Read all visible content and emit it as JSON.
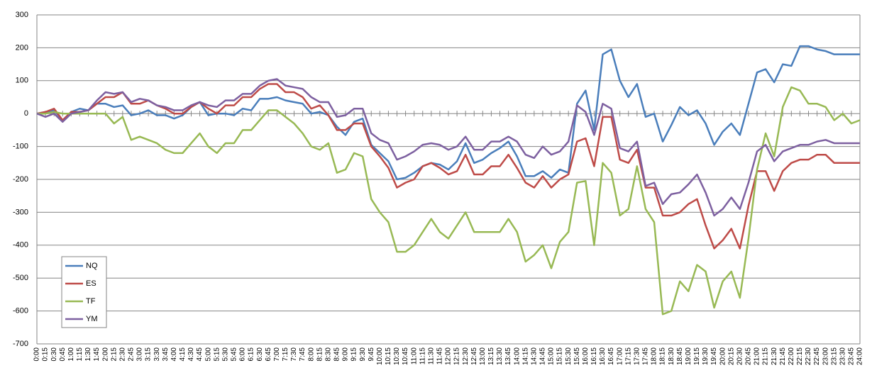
{
  "chart_data": {
    "type": "line",
    "categories": [
      "0:00",
      "0:15",
      "0:30",
      "0:45",
      "1:00",
      "1:15",
      "1:30",
      "1:45",
      "2:00",
      "2:15",
      "2:30",
      "2:45",
      "3:00",
      "3:15",
      "3:30",
      "3:45",
      "4:00",
      "4:15",
      "4:30",
      "4:45",
      "5:00",
      "5:15",
      "5:30",
      "5:45",
      "6:00",
      "6:15",
      "6:30",
      "6:45",
      "7:00",
      "7:15",
      "7:30",
      "7:45",
      "8:00",
      "8:15",
      "8:30",
      "8:45",
      "9:00",
      "9:15",
      "9:30",
      "9:45",
      "10:00",
      "10:15",
      "10:30",
      "10:45",
      "11:00",
      "11:15",
      "11:30",
      "11:45",
      "12:00",
      "12:15",
      "12:30",
      "12:45",
      "13:00",
      "13:15",
      "13:30",
      "13:45",
      "14:00",
      "14:15",
      "14:30",
      "14:45",
      "15:00",
      "15:15",
      "15:30",
      "15:45",
      "16:00",
      "16:15",
      "16:30",
      "16:45",
      "17:00",
      "17:15",
      "17:30",
      "17:45",
      "18:00",
      "18:15",
      "18:30",
      "18:45",
      "19:00",
      "19:15",
      "19:30",
      "19:45",
      "20:00",
      "20:15",
      "20:30",
      "20:45",
      "21:00",
      "21:15",
      "21:30",
      "21:45",
      "22:00",
      "22:15",
      "22:30",
      "22:45",
      "23:00",
      "23:15",
      "23:30",
      "23:45",
      "24:00"
    ],
    "series": [
      {
        "name": "NQ",
        "color": "#4a7ebb",
        "values": [
          0,
          5,
          10,
          -20,
          5,
          15,
          10,
          30,
          30,
          20,
          25,
          -5,
          0,
          10,
          -5,
          -5,
          -15,
          -5,
          20,
          35,
          -5,
          0,
          0,
          -5,
          15,
          10,
          45,
          45,
          50,
          40,
          35,
          30,
          0,
          5,
          -5,
          -40,
          -65,
          -25,
          -15,
          -95,
          -120,
          -145,
          -200,
          -195,
          -180,
          -160,
          -150,
          -155,
          -170,
          -145,
          -90,
          -150,
          -140,
          -120,
          -105,
          -85,
          -130,
          -190,
          -190,
          -175,
          -195,
          -170,
          -180,
          30,
          70,
          -50,
          180,
          195,
          100,
          50,
          90,
          -10,
          0,
          -85,
          -35,
          20,
          -5,
          10,
          -30,
          -95,
          -55,
          -30,
          -65,
          30,
          125,
          135,
          95,
          150,
          145,
          205,
          205,
          195,
          190,
          180,
          180,
          180,
          180
        ]
      },
      {
        "name": "ES",
        "color": "#be4b48",
        "values": [
          0,
          5,
          15,
          -20,
          5,
          5,
          10,
          30,
          50,
          50,
          65,
          30,
          30,
          40,
          25,
          15,
          0,
          0,
          20,
          35,
          15,
          0,
          25,
          25,
          50,
          50,
          75,
          90,
          90,
          65,
          65,
          50,
          15,
          25,
          -5,
          -50,
          -50,
          -30,
          -30,
          -100,
          -130,
          -165,
          -225,
          -210,
          -200,
          -160,
          -150,
          -165,
          -185,
          -175,
          -125,
          -185,
          -185,
          -160,
          -160,
          -125,
          -165,
          -210,
          -225,
          -190,
          -225,
          -200,
          -185,
          -85,
          -75,
          -160,
          -10,
          -10,
          -140,
          -150,
          -110,
          -225,
          -225,
          -310,
          -310,
          -300,
          -275,
          -260,
          -340,
          -410,
          -385,
          -350,
          -410,
          -280,
          -175,
          -175,
          -235,
          -175,
          -150,
          -140,
          -140,
          -125,
          -125,
          -150,
          -150,
          -150,
          -150
        ]
      },
      {
        "name": "TF",
        "color": "#98b954",
        "values": [
          0,
          0,
          5,
          0,
          0,
          0,
          0,
          0,
          0,
          -30,
          -10,
          -80,
          -70,
          -80,
          -90,
          -110,
          -120,
          -120,
          -90,
          -60,
          -100,
          -120,
          -90,
          -90,
          -50,
          -50,
          -20,
          10,
          10,
          -10,
          -30,
          -60,
          -100,
          -110,
          -90,
          -180,
          -170,
          -120,
          -130,
          -260,
          -300,
          -330,
          -420,
          -420,
          -400,
          -360,
          -320,
          -360,
          -380,
          -340,
          -300,
          -360,
          -360,
          -360,
          -360,
          -320,
          -360,
          -450,
          -430,
          -400,
          -470,
          -390,
          -360,
          -210,
          -205,
          -400,
          -150,
          -180,
          -310,
          -290,
          -160,
          -290,
          -330,
          -610,
          -600,
          -510,
          -540,
          -460,
          -480,
          -590,
          -510,
          -480,
          -560,
          -380,
          -170,
          -60,
          -130,
          20,
          80,
          70,
          30,
          30,
          20,
          -20,
          0,
          -30,
          -20
        ]
      },
      {
        "name": "YM",
        "color": "#7d60a0",
        "values": [
          0,
          -10,
          0,
          -25,
          0,
          5,
          10,
          40,
          65,
          60,
          65,
          35,
          45,
          40,
          25,
          20,
          10,
          10,
          25,
          35,
          25,
          20,
          40,
          40,
          60,
          60,
          85,
          100,
          105,
          85,
          80,
          75,
          50,
          35,
          35,
          -10,
          -5,
          15,
          15,
          -60,
          -80,
          -90,
          -140,
          -130,
          -115,
          -95,
          -90,
          -95,
          -110,
          -100,
          -70,
          -110,
          -110,
          -85,
          -85,
          -70,
          -85,
          -125,
          -135,
          -100,
          -125,
          -115,
          -85,
          25,
          5,
          -65,
          30,
          15,
          -105,
          -115,
          -85,
          -220,
          -210,
          -275,
          -245,
          -240,
          -215,
          -185,
          -240,
          -310,
          -290,
          -255,
          -290,
          -210,
          -115,
          -95,
          -145,
          -115,
          -105,
          -95,
          -95,
          -85,
          -80,
          -90,
          -90,
          -90,
          -90
        ]
      }
    ],
    "ylim": [
      -700,
      300
    ],
    "yticks": [
      -700,
      -600,
      -500,
      -400,
      -300,
      -200,
      -100,
      0,
      100,
      200,
      300
    ],
    "grid": true,
    "legend": "left"
  }
}
